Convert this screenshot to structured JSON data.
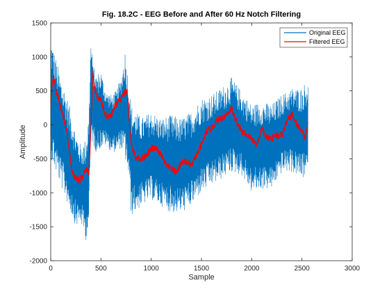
{
  "chart_data": {
    "type": "line",
    "title": "Fig. 18.2C - EEG Before and After 60 Hz Notch Filtering",
    "xlabel": "Sample",
    "ylabel": "Amplitude",
    "xlim": [
      0,
      3000
    ],
    "ylim": [
      -2000,
      1500
    ],
    "xticks": [
      0,
      500,
      1000,
      1500,
      2000,
      2500,
      3000
    ],
    "yticks": [
      -2000,
      -1500,
      -1000,
      -500,
      0,
      500,
      1000,
      1500
    ],
    "grid": false,
    "legend_position": "top-right",
    "series": [
      {
        "name": "Original EEG",
        "color": "#0072BD",
        "envelope_x": [
          0,
          50,
          100,
          150,
          200,
          250,
          300,
          350,
          380,
          400,
          420,
          450,
          500,
          550,
          600,
          650,
          700,
          740,
          780,
          800,
          900,
          1000,
          1100,
          1200,
          1300,
          1400,
          1500,
          1600,
          1700,
          1800,
          1900,
          2000,
          2100,
          2200,
          2300,
          2400,
          2500,
          2560
        ],
        "upper": [
          1300,
          1000,
          700,
          500,
          200,
          -100,
          -300,
          -200,
          200,
          1300,
          900,
          750,
          800,
          500,
          450,
          500,
          700,
          1100,
          600,
          300,
          100,
          200,
          100,
          150,
          100,
          200,
          400,
          450,
          550,
          700,
          500,
          300,
          350,
          300,
          450,
          550,
          550,
          700
        ],
        "lower": [
          -500,
          -700,
          -900,
          -1100,
          -1300,
          -1500,
          -1450,
          -1700,
          -1500,
          -200,
          -300,
          -400,
          -350,
          -300,
          -400,
          -400,
          -350,
          -500,
          -800,
          -1350,
          -1200,
          -1100,
          -1200,
          -1300,
          -1300,
          -1200,
          -1000,
          -900,
          -800,
          -700,
          -750,
          -1000,
          -950,
          -950,
          -700,
          -700,
          -800,
          -750
        ]
      },
      {
        "name": "Filtered EEG",
        "color": "#FF0000",
        "x": [
          0,
          20,
          40,
          60,
          80,
          100,
          130,
          160,
          190,
          210,
          230,
          260,
          290,
          320,
          350,
          380,
          400,
          420,
          440,
          470,
          500,
          530,
          560,
          600,
          640,
          680,
          720,
          760,
          800,
          850,
          900,
          950,
          1000,
          1050,
          1100,
          1150,
          1200,
          1250,
          1300,
          1350,
          1400,
          1450,
          1500,
          1550,
          1600,
          1650,
          1700,
          1750,
          1800,
          1820,
          1850,
          1900,
          1950,
          2000,
          2050,
          2100,
          2150,
          2200,
          2250,
          2300,
          2350,
          2400,
          2450,
          2500,
          2530,
          2560
        ],
        "y": [
          300,
          720,
          620,
          450,
          380,
          250,
          100,
          -100,
          -400,
          -700,
          -750,
          -800,
          -820,
          -750,
          -650,
          -700,
          -100,
          750,
          500,
          400,
          350,
          200,
          120,
          120,
          280,
          350,
          450,
          500,
          -300,
          -500,
          -500,
          -450,
          -350,
          -350,
          -450,
          -600,
          -650,
          -700,
          -550,
          -550,
          -600,
          -450,
          -300,
          -100,
          -50,
          50,
          100,
          150,
          250,
          150,
          50,
          -100,
          -150,
          -200,
          -300,
          -50,
          -200,
          -200,
          -150,
          -150,
          50,
          150,
          0,
          -100,
          -200,
          0
        ]
      }
    ]
  }
}
